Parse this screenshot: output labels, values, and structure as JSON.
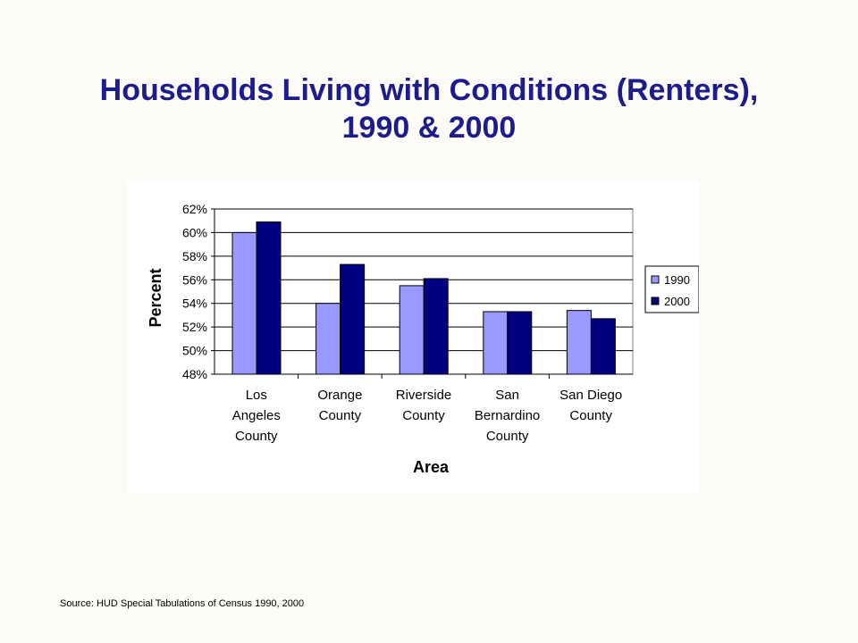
{
  "slide": {
    "title_line1": "Households Living with Conditions (Renters),",
    "title_line2": "1990 & 2000",
    "source": "Source: HUD Special Tabulations of Census 1990, 2000"
  },
  "colors": {
    "title": "#1c1c8c",
    "series_1990": "#9999ff",
    "series_2000": "#000080",
    "background": "#fcfbf7"
  },
  "chart_data": {
    "type": "bar",
    "title": "",
    "xlabel": "Area",
    "ylabel": "Percent",
    "ylim": [
      48,
      62
    ],
    "yticks": [
      "48%",
      "50%",
      "52%",
      "54%",
      "56%",
      "58%",
      "60%",
      "62%"
    ],
    "ytick_values": [
      48,
      50,
      52,
      54,
      56,
      58,
      60,
      62
    ],
    "grid": true,
    "legend_position": "right",
    "categories": [
      [
        "Los",
        "Angeles",
        "County"
      ],
      [
        "Orange",
        "County"
      ],
      [
        "Riverside",
        "County"
      ],
      [
        "San",
        "Bernardino",
        "County"
      ],
      [
        "San Diego",
        "County"
      ]
    ],
    "series": [
      {
        "name": "1990",
        "values": [
          60.0,
          54.0,
          55.5,
          53.3,
          53.4
        ]
      },
      {
        "name": "2000",
        "values": [
          60.9,
          57.3,
          56.1,
          53.3,
          52.7
        ]
      }
    ]
  }
}
